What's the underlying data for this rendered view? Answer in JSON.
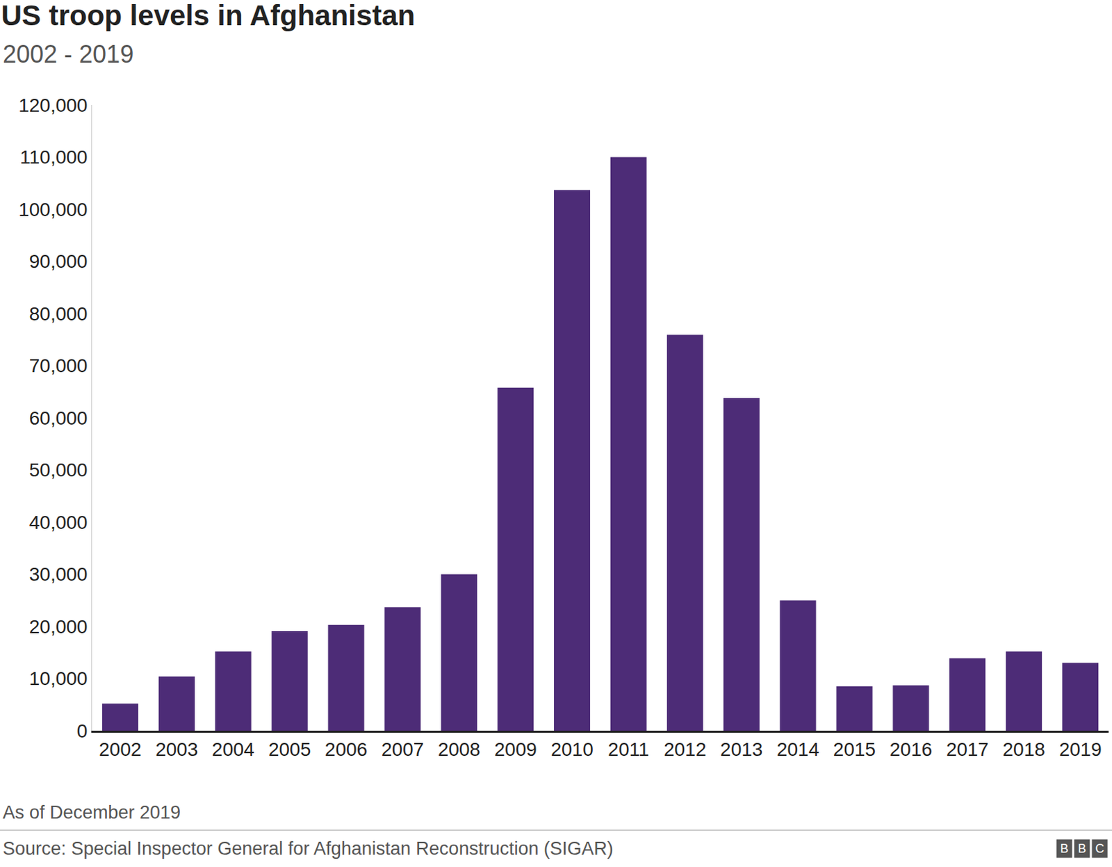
{
  "chart_data": {
    "type": "bar",
    "title": "US troop levels in Afghanistan",
    "subtitle": "2002 - 2019",
    "note": "As of December 2019",
    "source": "Source: Special Inspector General for Afghanistan Reconstruction (SIGAR)",
    "logo": "BBC",
    "categories": [
      "2002",
      "2003",
      "2004",
      "2005",
      "2006",
      "2007",
      "2008",
      "2009",
      "2010",
      "2011",
      "2012",
      "2013",
      "2014",
      "2015",
      "2016",
      "2017",
      "2018",
      "2019"
    ],
    "values": [
      5200,
      10400,
      15200,
      19100,
      20300,
      23700,
      30000,
      65800,
      103700,
      110000,
      75900,
      63800,
      25000,
      8500,
      8700,
      13900,
      15200,
      13000
    ],
    "color": "#4d2c77",
    "ylim": [
      0,
      120000
    ],
    "yticks": [
      0,
      {
        "value": 10000,
        "label": "10,000"
      },
      {
        "value": 20000,
        "label": "20,000"
      },
      {
        "value": 30000,
        "label": "30,000"
      },
      {
        "value": 40000,
        "label": "40,000"
      },
      {
        "value": 50000,
        "label": "50,000"
      },
      {
        "value": 60000,
        "label": "60,000"
      },
      {
        "value": 70000,
        "label": "70,000"
      },
      {
        "value": 80000,
        "label": "80,000"
      },
      {
        "value": 90000,
        "label": "90,000"
      },
      {
        "value": 100000,
        "label": "100,000"
      },
      {
        "value": 110000,
        "label": "110,000"
      },
      {
        "value": 120000,
        "label": "120,000"
      }
    ],
    "grid": false
  }
}
